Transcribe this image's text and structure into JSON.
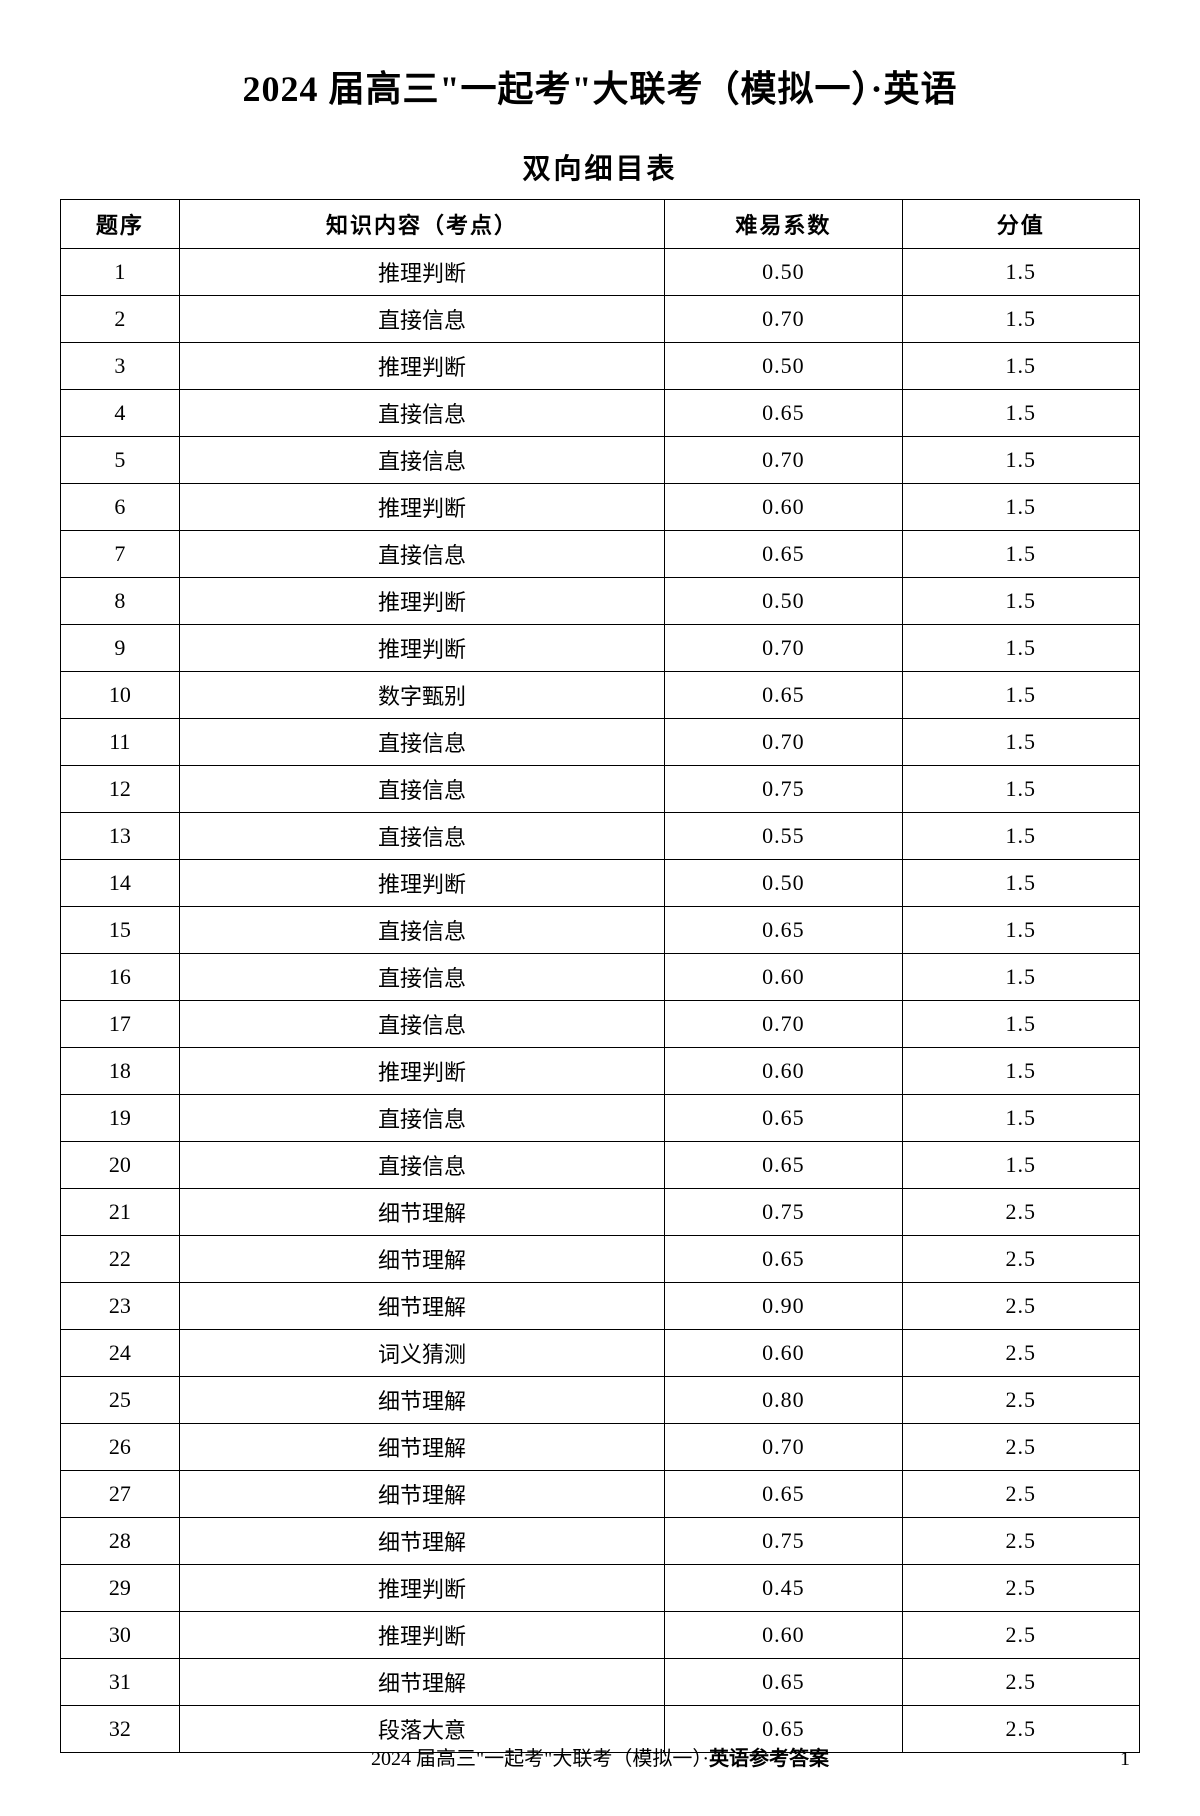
{
  "main_title": "2024 届高三\"一起考\"大联考（模拟一）·英语",
  "sub_title": "双向细目表",
  "table": {
    "columns": [
      "题序",
      "知识内容（考点）",
      "难易系数",
      "分值"
    ],
    "col_widths": [
      "11%",
      "45%",
      "22%",
      "22%"
    ],
    "rows": [
      [
        "1",
        "推理判断",
        "0.50",
        "1.5"
      ],
      [
        "2",
        "直接信息",
        "0.70",
        "1.5"
      ],
      [
        "3",
        "推理判断",
        "0.50",
        "1.5"
      ],
      [
        "4",
        "直接信息",
        "0.65",
        "1.5"
      ],
      [
        "5",
        "直接信息",
        "0.70",
        "1.5"
      ],
      [
        "6",
        "推理判断",
        "0.60",
        "1.5"
      ],
      [
        "7",
        "直接信息",
        "0.65",
        "1.5"
      ],
      [
        "8",
        "推理判断",
        "0.50",
        "1.5"
      ],
      [
        "9",
        "推理判断",
        "0.70",
        "1.5"
      ],
      [
        "10",
        "数字甄别",
        "0.65",
        "1.5"
      ],
      [
        "11",
        "直接信息",
        "0.70",
        "1.5"
      ],
      [
        "12",
        "直接信息",
        "0.75",
        "1.5"
      ],
      [
        "13",
        "直接信息",
        "0.55",
        "1.5"
      ],
      [
        "14",
        "推理判断",
        "0.50",
        "1.5"
      ],
      [
        "15",
        "直接信息",
        "0.65",
        "1.5"
      ],
      [
        "16",
        "直接信息",
        "0.60",
        "1.5"
      ],
      [
        "17",
        "直接信息",
        "0.70",
        "1.5"
      ],
      [
        "18",
        "推理判断",
        "0.60",
        "1.5"
      ],
      [
        "19",
        "直接信息",
        "0.65",
        "1.5"
      ],
      [
        "20",
        "直接信息",
        "0.65",
        "1.5"
      ],
      [
        "21",
        "细节理解",
        "0.75",
        "2.5"
      ],
      [
        "22",
        "细节理解",
        "0.65",
        "2.5"
      ],
      [
        "23",
        "细节理解",
        "0.90",
        "2.5"
      ],
      [
        "24",
        "词义猜测",
        "0.60",
        "2.5"
      ],
      [
        "25",
        "细节理解",
        "0.80",
        "2.5"
      ],
      [
        "26",
        "细节理解",
        "0.70",
        "2.5"
      ],
      [
        "27",
        "细节理解",
        "0.65",
        "2.5"
      ],
      [
        "28",
        "细节理解",
        "0.75",
        "2.5"
      ],
      [
        "29",
        "推理判断",
        "0.45",
        "2.5"
      ],
      [
        "30",
        "推理判断",
        "0.60",
        "2.5"
      ],
      [
        "31",
        "细节理解",
        "0.65",
        "2.5"
      ],
      [
        "32",
        "段落大意",
        "0.65",
        "2.5"
      ]
    ]
  },
  "footer_prefix": "2024 届高三\"一起考\"大联考（模拟一）·",
  "footer_bold": "英语参考答案",
  "page_number": "1",
  "colors": {
    "background": "#ffffff",
    "text": "#000000",
    "border": "#000000"
  },
  "typography": {
    "main_title_size": 36,
    "sub_title_size": 28,
    "table_font_size": 22,
    "footer_font_size": 20
  }
}
